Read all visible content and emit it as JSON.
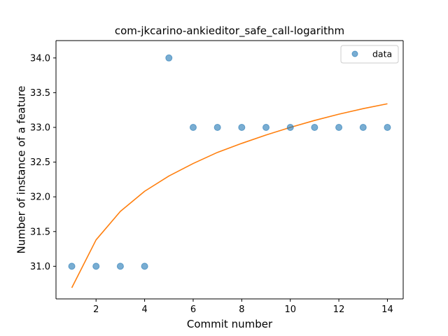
{
  "chart_data": {
    "type": "scatter",
    "title": "com-jkcarino-ankieditor_safe_call-logarithm",
    "xlabel": "Commit number",
    "ylabel": "Number of instance of a feature",
    "xlim": [
      0.35,
      14.65
    ],
    "ylim": [
      30.53,
      34.25
    ],
    "xticks": [
      2,
      4,
      6,
      8,
      10,
      12,
      14
    ],
    "xtick_labels": [
      "2",
      "4",
      "6",
      "8",
      "10",
      "12",
      "14"
    ],
    "yticks": [
      31.0,
      31.5,
      32.0,
      32.5,
      33.0,
      33.5,
      34.0
    ],
    "ytick_labels": [
      "31.0",
      "31.5",
      "32.0",
      "32.5",
      "33.0",
      "33.5",
      "34.0"
    ],
    "grid": false,
    "legend": {
      "position": "top-right",
      "entries": [
        "data"
      ]
    },
    "series": [
      {
        "name": "data",
        "kind": "scatter",
        "color": "#1f77b4",
        "x": [
          1,
          2,
          3,
          4,
          5,
          6,
          7,
          8,
          9,
          10,
          11,
          12,
          13,
          14
        ],
        "y": [
          31,
          31,
          31,
          31,
          34,
          33,
          33,
          33,
          33,
          33,
          33,
          33,
          33,
          33
        ]
      },
      {
        "kind": "line",
        "color": "#ff7f0e",
        "x": [
          1,
          2,
          3,
          4,
          5,
          6,
          7,
          8,
          9,
          10,
          11,
          12,
          13,
          14
        ],
        "y": [
          30.69,
          31.38,
          31.79,
          32.08,
          32.3,
          32.48,
          32.64,
          32.77,
          32.89,
          33.0,
          33.1,
          33.19,
          33.27,
          33.34
        ]
      }
    ]
  }
}
